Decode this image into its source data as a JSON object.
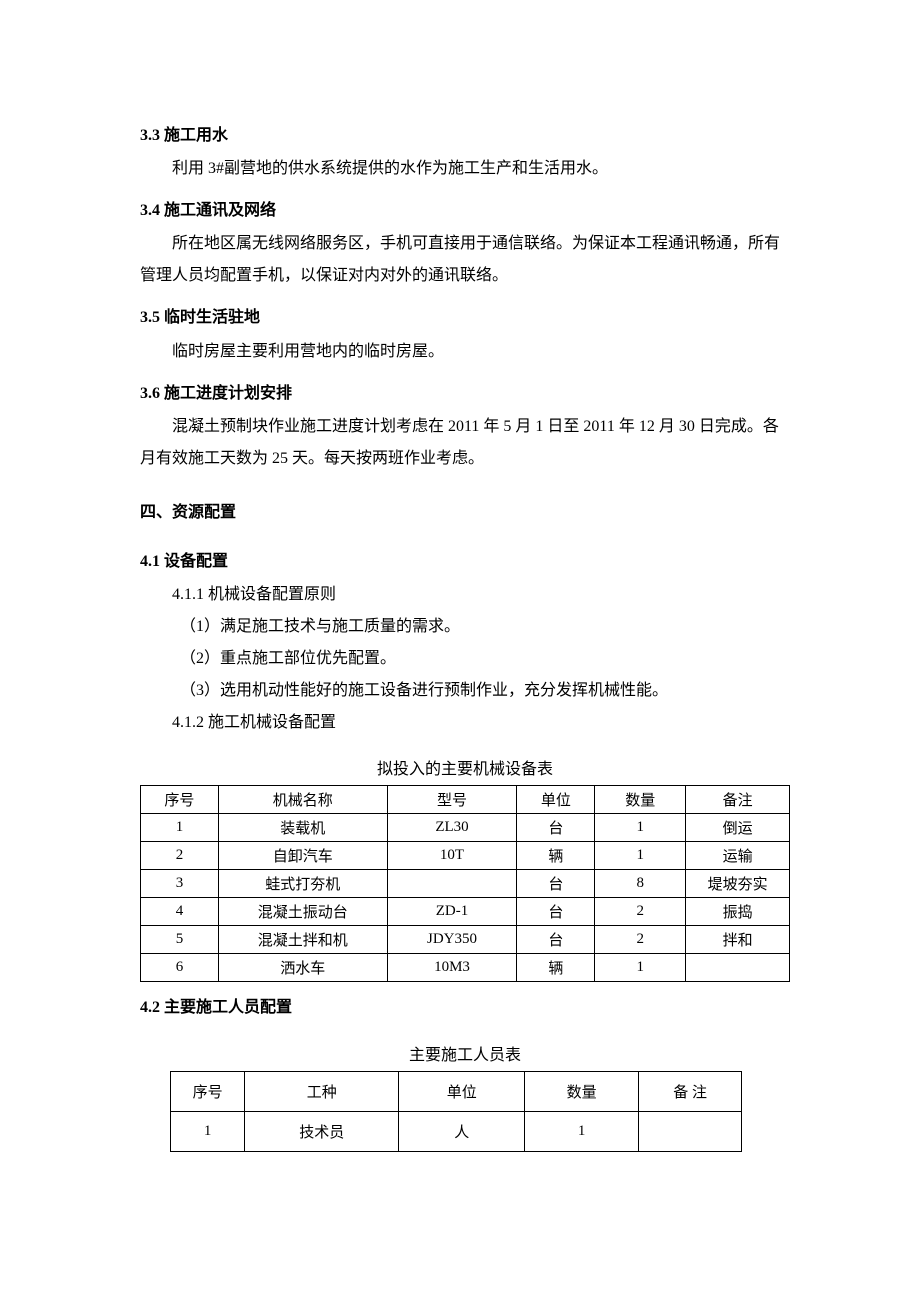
{
  "sections": {
    "s33_title": "3.3 施工用水",
    "s33_body": "利用 3#副营地的供水系统提供的水作为施工生产和生活用水。",
    "s34_title": "3.4 施工通讯及网络",
    "s34_body1": "所在地区属无线网络服务区，手机可直接用于通信联络。为保证本工程通讯畅通，所有管理人员均配置手机，以保证对内对外的通讯联络。",
    "s35_title": "3.5 临时生活驻地",
    "s35_body": "临时房屋主要利用营地内的临时房屋。",
    "s36_title": "3.6  施工进度计划安排",
    "s36_body": "混凝土预制块作业施工进度计划考虑在 2011 年 5 月 1 日至 2011 年 12 月 30 日完成。各月有效施工天数为 25 天。每天按两班作业考虑。",
    "s4_title": "四、资源配置",
    "s41_title": "4.1 设备配置",
    "s411_title": "4.1.1 机械设备配置原则",
    "s411_item1": "（1）满足施工技术与施工质量的需求。",
    "s411_item2": "（2）重点施工部位优先配置。",
    "s411_item3": "（3）选用机动性能好的施工设备进行预制作业，充分发挥机械性能。",
    "s412_title": "4.1.2  施工机械设备配置",
    "s42_title": "4.2 主要施工人员配置"
  },
  "equipment_table": {
    "caption": "拟投入的主要机械设备表",
    "columns": [
      "序号",
      "机械名称",
      "型号",
      "单位",
      "数量",
      "备注"
    ],
    "rows": [
      [
        "1",
        "装载机",
        "ZL30",
        "台",
        "1",
        "倒运"
      ],
      [
        "2",
        "自卸汽车",
        "10T",
        "辆",
        "1",
        "运输"
      ],
      [
        "3",
        "蛙式打夯机",
        "",
        "台",
        "8",
        "堤坡夯实"
      ],
      [
        "4",
        "混凝土振动台",
        "ZD-1",
        "台",
        "2",
        "振捣"
      ],
      [
        "5",
        "混凝土拌和机",
        "JDY350",
        "台",
        "2",
        "拌和"
      ],
      [
        "6",
        "洒水车",
        "10M3",
        "辆",
        "1",
        ""
      ]
    ]
  },
  "personnel_table": {
    "caption": "主要施工人员表",
    "columns": [
      "序号",
      "工种",
      "单位",
      "数量",
      "备  注"
    ],
    "rows": [
      [
        "1",
        "技术员",
        "人",
        "1",
        ""
      ]
    ]
  }
}
